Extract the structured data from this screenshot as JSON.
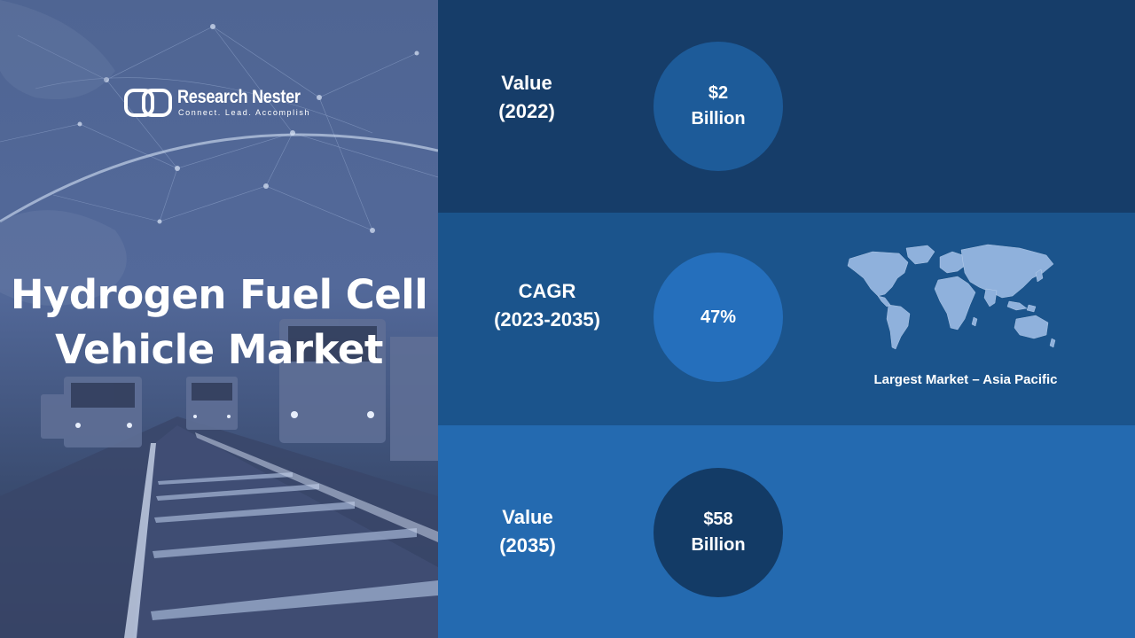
{
  "brand": {
    "name": "Research Nester",
    "tagline": "Connect. Lead. Accomplish"
  },
  "title": {
    "line1": "Hydrogen Fuel Cell",
    "line2": "Vehicle Market"
  },
  "stats": [
    {
      "label_line1": "Value",
      "label_line2": "(2022)",
      "value_line1": "$2",
      "value_line2": "Billion"
    },
    {
      "label_line1": "CAGR",
      "label_line2": "(2023-2035)",
      "value_line1": "47%",
      "value_line2": ""
    },
    {
      "label_line1": "Value",
      "label_line2": "(2035)",
      "value_line1": "$58",
      "value_line2": "Billion"
    }
  ],
  "largest_market": "Largest Market – Asia Pacific",
  "colors": {
    "band_top": "#163d69",
    "band_middle": "#1b548c",
    "band_bottom": "#246ab0",
    "circle_top": "#1d5b99",
    "circle_middle": "#256fbc",
    "circle_bottom": "#133b66",
    "map": "#8fb1dc"
  },
  "icons": [
    "research-nester-logo-icon",
    "world-map-icon"
  ]
}
